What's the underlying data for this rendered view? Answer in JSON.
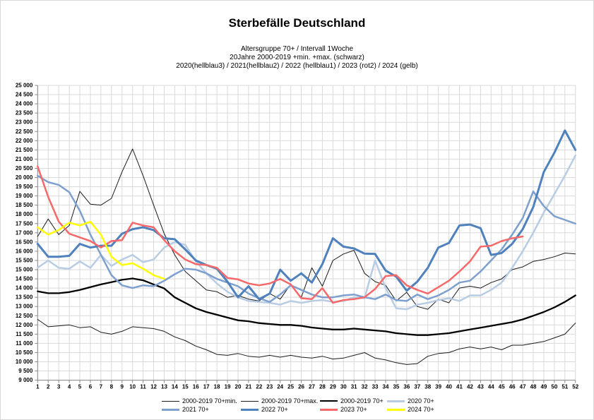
{
  "colors": {
    "background": "#ffffff",
    "grid": "#d9d9d9",
    "axis": "#8a8a8a",
    "text": "#000000"
  },
  "chart_data": {
    "type": "line",
    "title": "Sterbefälle Deutschland",
    "subtitle_lines": [
      "Altersgruppe 70+ / Intervall 1Woche",
      "20Jahre 2000-2019 +min. +max. (schwarz)",
      "2020(hellblau3) / 2021(hellblau2) / 2022 (hellblau1) / 2023 (rot2) / 2024 (gelb)"
    ],
    "xlabel": "",
    "ylabel": "",
    "x": [
      1,
      2,
      3,
      4,
      5,
      6,
      7,
      8,
      9,
      10,
      11,
      12,
      13,
      14,
      15,
      16,
      17,
      18,
      19,
      20,
      21,
      22,
      23,
      24,
      25,
      26,
      27,
      28,
      29,
      30,
      31,
      32,
      33,
      34,
      35,
      36,
      37,
      38,
      39,
      40,
      41,
      42,
      43,
      44,
      45,
      46,
      47,
      48,
      49,
      50,
      51,
      52
    ],
    "ylim": [
      9000,
      25000
    ],
    "ytick_step": 500,
    "grid": true,
    "legend_position": "bottom",
    "series": [
      {
        "name": "2000-2019 70+min.",
        "color": "#1a1a1a",
        "width": 1,
        "values": [
          12300,
          11900,
          11950,
          12000,
          11850,
          11900,
          11600,
          11500,
          11650,
          11900,
          11850,
          11800,
          11650,
          11350,
          11150,
          10850,
          10650,
          10400,
          10350,
          10450,
          10300,
          10250,
          10350,
          10250,
          10350,
          10250,
          10200,
          10300,
          10150,
          10200,
          10350,
          10500,
          10200,
          10100,
          9950,
          9850,
          9900,
          10300,
          10450,
          10500,
          10700,
          10800,
          10700,
          10800,
          10650,
          10900,
          10900,
          11000,
          11100,
          11300,
          11500,
          12100
        ]
      },
      {
        "name": "2000-2019 70+max.",
        "color": "#1a1a1a",
        "width": 1,
        "values": [
          16800,
          17750,
          16900,
          17400,
          19250,
          18550,
          18500,
          18870,
          20300,
          21550,
          20100,
          18500,
          16950,
          15800,
          14900,
          14400,
          13900,
          13800,
          13500,
          13600,
          13400,
          13300,
          13700,
          13400,
          14200,
          13500,
          15100,
          14100,
          15500,
          15850,
          16050,
          14800,
          14350,
          14150,
          13300,
          13770,
          13000,
          12850,
          13400,
          13200,
          14000,
          14100,
          14000,
          14300,
          14500,
          15000,
          15150,
          15450,
          15550,
          15700,
          15900,
          15850
        ]
      },
      {
        "name": "2000-2019 70+",
        "color": "#000000",
        "width": 2.3,
        "values": [
          13820,
          13720,
          13720,
          13780,
          13900,
          14050,
          14200,
          14320,
          14450,
          14520,
          14420,
          14200,
          13980,
          13500,
          13200,
          12900,
          12700,
          12550,
          12400,
          12250,
          12200,
          12100,
          12050,
          12000,
          12000,
          11950,
          11860,
          11800,
          11750,
          11750,
          11800,
          11750,
          11700,
          11650,
          11550,
          11500,
          11450,
          11450,
          11500,
          11550,
          11650,
          11750,
          11850,
          11950,
          12050,
          12150,
          12300,
          12500,
          12700,
          12950,
          13250,
          13600
        ]
      },
      {
        "name": "2020 70+",
        "color": "#b8cce4",
        "width": 2.5,
        "values": [
          15100,
          15500,
          15100,
          15050,
          15450,
          15100,
          15800,
          15200,
          15550,
          15800,
          15400,
          15550,
          16200,
          16500,
          16350,
          15450,
          14800,
          14250,
          13800,
          13500,
          13300,
          13250,
          13200,
          13100,
          13300,
          13200,
          13300,
          13350,
          13250,
          13300,
          13500,
          13450,
          15500,
          14000,
          12900,
          12850,
          13100,
          13200,
          13350,
          13450,
          13300,
          13600,
          13600,
          13900,
          14300,
          15100,
          16000,
          17000,
          18100,
          19100,
          20100,
          21200
        ]
      },
      {
        "name": "2021 70+",
        "color": "#7da0cf",
        "width": 2.5,
        "values": [
          20100,
          19750,
          19600,
          19200,
          18200,
          16900,
          15800,
          14700,
          14150,
          14000,
          14150,
          14100,
          14400,
          14750,
          15050,
          15000,
          14800,
          14500,
          14300,
          14100,
          13700,
          13450,
          13250,
          13650,
          14150,
          13900,
          13650,
          13500,
          13500,
          13600,
          13650,
          13500,
          13400,
          13650,
          13350,
          13300,
          13650,
          13400,
          13600,
          13900,
          14300,
          14400,
          14900,
          15500,
          16100,
          16900,
          17800,
          19250,
          18450,
          17900,
          17700,
          17500
        ]
      },
      {
        "name": "2022 70+",
        "color": "#4f81bd",
        "width": 3,
        "values": [
          16400,
          15700,
          15700,
          15750,
          16400,
          16200,
          16300,
          16300,
          16950,
          17200,
          17300,
          17150,
          16700,
          16650,
          16100,
          15500,
          15250,
          15050,
          14350,
          13500,
          14100,
          13400,
          13700,
          15000,
          14400,
          14800,
          14300,
          15300,
          16700,
          16250,
          16150,
          15870,
          15850,
          14950,
          14620,
          13860,
          14350,
          15100,
          16200,
          16450,
          17400,
          17450,
          17250,
          15800,
          15900,
          16400,
          17200,
          18400,
          20300,
          21350,
          22550,
          21500
        ]
      },
      {
        "name": "2023 70+",
        "color": "#f5696a",
        "width": 2.5,
        "values": [
          20600,
          18950,
          17600,
          16950,
          16750,
          16550,
          16200,
          16550,
          16600,
          17550,
          17400,
          17300,
          16600,
          16000,
          15550,
          15300,
          15250,
          15100,
          14550,
          14470,
          14250,
          14150,
          14250,
          14500,
          14200,
          13450,
          13400,
          14000,
          13200,
          13350,
          13400,
          13500,
          13950,
          14650,
          14700,
          14150,
          13900,
          13700,
          14050,
          14400,
          14900,
          15450,
          16250,
          16300,
          16550,
          16700,
          16800,
          null,
          null,
          null,
          null,
          null
        ]
      },
      {
        "name": "2024 70+",
        "color": "#ffff00",
        "width": 2.5,
        "values": [
          17300,
          16900,
          17150,
          17550,
          17400,
          17600,
          16900,
          15700,
          15250,
          15350,
          15050,
          14700,
          14500,
          null,
          null,
          null,
          null,
          null,
          null,
          null,
          null,
          null,
          null,
          null,
          null,
          null,
          null,
          null,
          null,
          null,
          null,
          null,
          null,
          null,
          null,
          null,
          null,
          null,
          null,
          null,
          null,
          null,
          null,
          null,
          null,
          null,
          null,
          null,
          null,
          null,
          null,
          null
        ]
      }
    ]
  }
}
